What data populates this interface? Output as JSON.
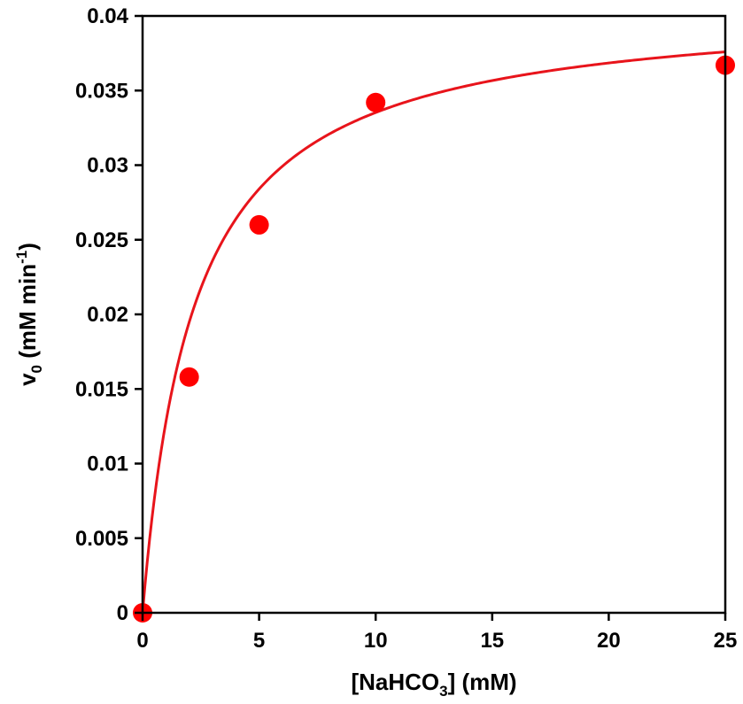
{
  "chart_data": {
    "type": "scatter",
    "title": "",
    "xlabel": {
      "prefix": "[NaHCO",
      "sub": "3",
      "suffix": "] (mM)"
    },
    "ylabel": {
      "base": "v",
      "sub": "0",
      "middle": " (mM min",
      "sup": "-1",
      "suffix": ")"
    },
    "xlim": [
      0,
      25
    ],
    "ylim": [
      0,
      0.04
    ],
    "x_ticks": [
      0,
      5,
      10,
      15,
      20,
      25
    ],
    "x_tick_labels": [
      "0",
      "5",
      "10",
      "15",
      "20",
      "25"
    ],
    "y_ticks": [
      0,
      0.005,
      0.01,
      0.015,
      0.02,
      0.025,
      0.03,
      0.035,
      0.04
    ],
    "y_tick_labels": [
      "0",
      "0.005",
      "0.01",
      "0.015",
      "0.02",
      "0.025",
      "0.03",
      "0.035",
      "0.04"
    ],
    "grid": false,
    "legend": "none",
    "series": [
      {
        "type": "scatter",
        "color": "#ff0000",
        "x": [
          0,
          2,
          5,
          10,
          25
        ],
        "y": [
          0,
          0.0158,
          0.026,
          0.0342,
          0.0367
        ]
      },
      {
        "type": "line",
        "color": "#e8141b",
        "model": "michaelis-menten",
        "vmax": 0.0409,
        "km": 2.2
      }
    ]
  }
}
